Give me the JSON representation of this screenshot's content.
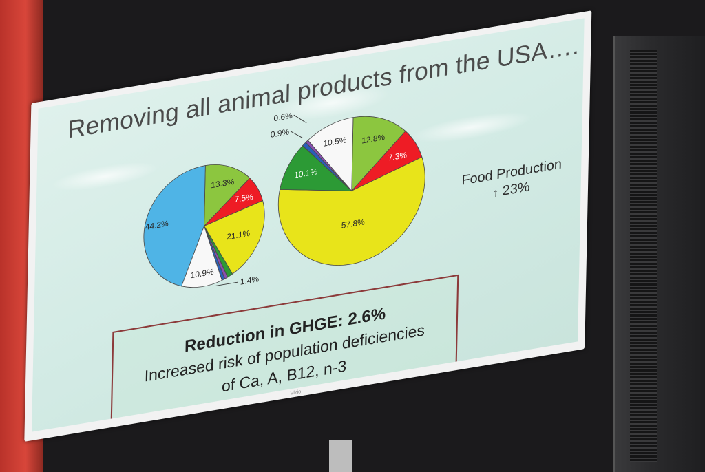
{
  "slide": {
    "title": "Removing all animal products from the USA….",
    "food_production_label": "Food Production",
    "food_production_value": "23%",
    "callout": {
      "headline": "Reduction in GHGE: 2.6%",
      "line1": "Increased risk of population deficiencies",
      "line2": "of Ca, A, B12, n-3"
    }
  },
  "tv_brand": "Vizio",
  "colors": {
    "light_green": "#8cc63f",
    "red": "#ee1c25",
    "yellow": "#e8e41a",
    "dark_green": "#2c9a35",
    "purple": "#8a4fb0",
    "blue_slice": "#2a5fb8",
    "white_slice": "#f8f8f8",
    "sky_blue": "#4fb4e6",
    "callout_border": "#8c3a3a"
  },
  "chart_data": [
    {
      "type": "pie",
      "title": "",
      "slices": [
        {
          "label": "13.3%",
          "value": 13.3,
          "color": "#8cc63f"
        },
        {
          "label": "7.5%",
          "value": 7.5,
          "color": "#ee1c25"
        },
        {
          "label": "21.1%",
          "value": 21.1,
          "color": "#e8e41a"
        },
        {
          "label": "1.4%",
          "value": 1.4,
          "color": "#2c9a35"
        },
        {
          "label": "",
          "value": 0.8,
          "color": "#8a4fb0"
        },
        {
          "label": "",
          "value": 0.8,
          "color": "#2a5fb8"
        },
        {
          "label": "10.9%",
          "value": 10.9,
          "color": "#f8f8f8"
        },
        {
          "label": "44.2%",
          "value": 44.2,
          "color": "#4fb4e6"
        }
      ]
    },
    {
      "type": "pie",
      "title": "",
      "slices": [
        {
          "label": "12.8%",
          "value": 12.8,
          "color": "#8cc63f"
        },
        {
          "label": "7.3%",
          "value": 7.3,
          "color": "#ee1c25"
        },
        {
          "label": "57.8%",
          "value": 57.8,
          "color": "#e8e41a"
        },
        {
          "label": "10.1%",
          "value": 10.1,
          "color": "#2c9a35"
        },
        {
          "label": "0.9%",
          "value": 0.9,
          "color": "#2a5fb8"
        },
        {
          "label": "0.6%",
          "value": 0.6,
          "color": "#8a4fb0"
        },
        {
          "label": "10.5%",
          "value": 10.5,
          "color": "#f8f8f8"
        }
      ]
    }
  ]
}
